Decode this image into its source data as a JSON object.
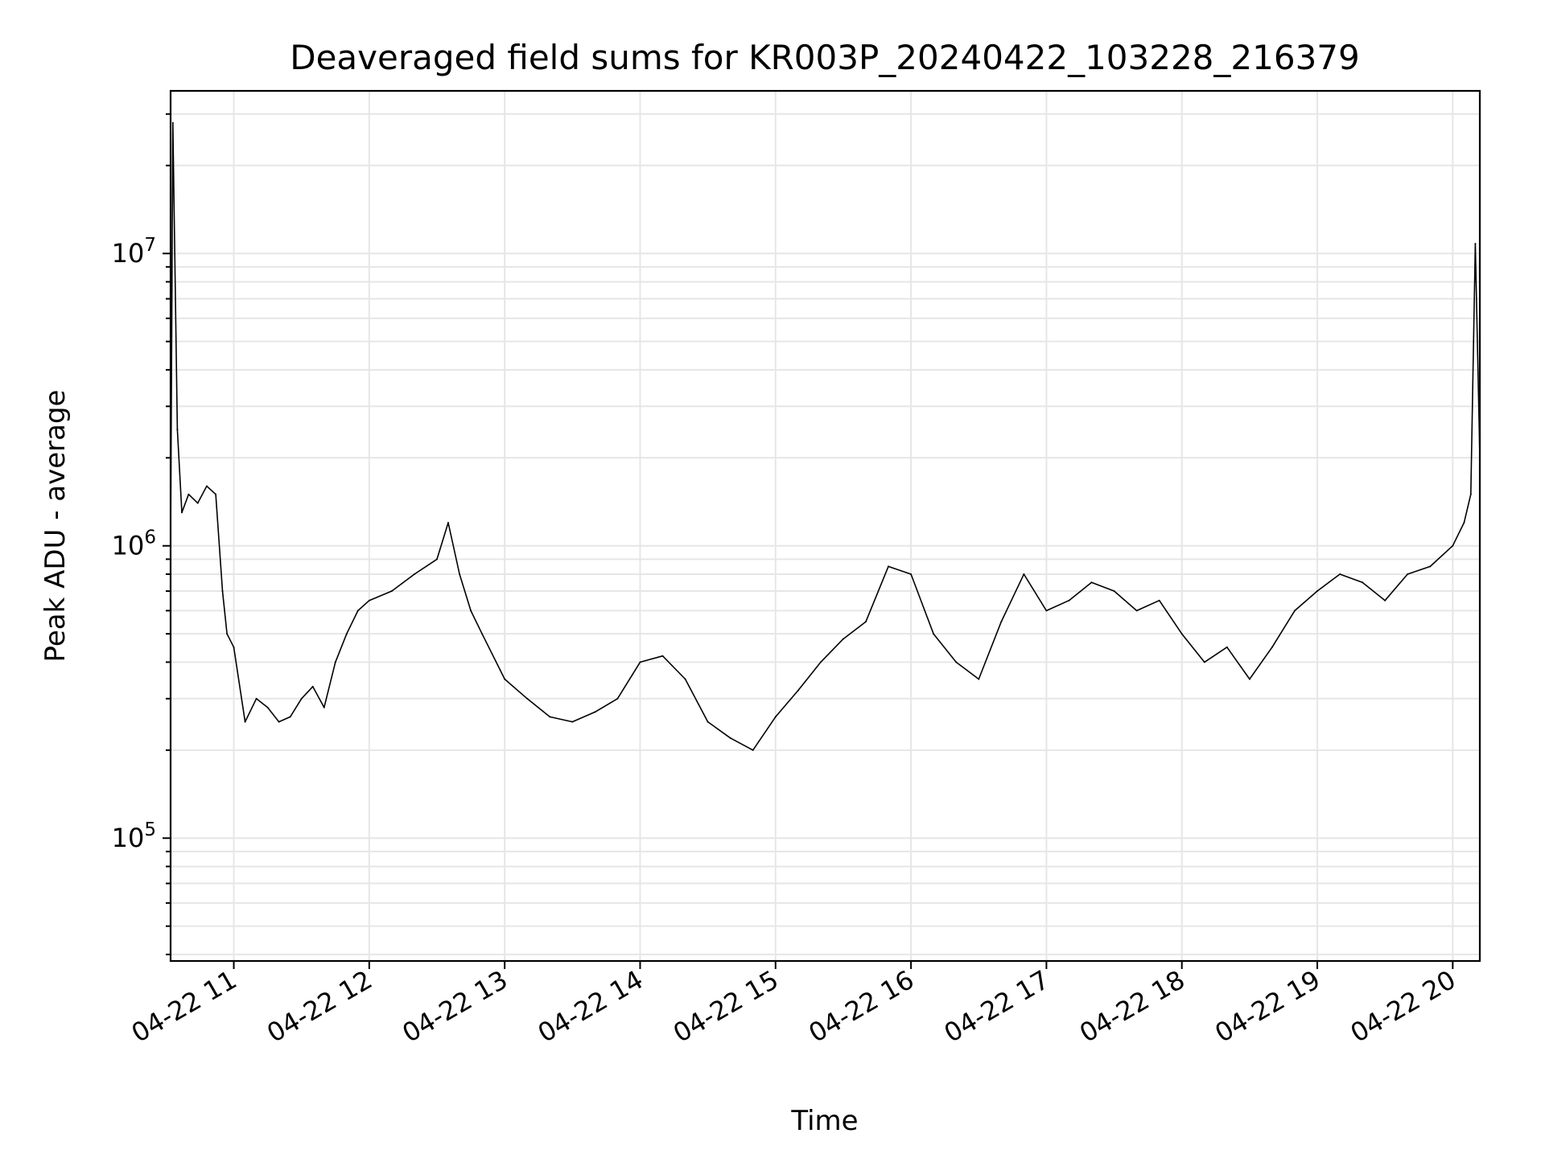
{
  "chart_data": {
    "type": "line",
    "title": "Deaveraged field sums for KR003P_20240422_103228_216379",
    "xlabel": "Time",
    "ylabel": "Peak ADU - average",
    "yscale": "log",
    "ylim": [
      38000,
      36000000
    ],
    "xlim": [
      "2024-04-22 10:32",
      "2024-04-22 20:12"
    ],
    "grid": true,
    "line_color": "#000000",
    "grid_color": "#e6e6e6",
    "x_ticks": [
      "04-22 11",
      "04-22 12",
      "04-22 13",
      "04-22 14",
      "04-22 15",
      "04-22 16",
      "04-22 17",
      "04-22 18",
      "04-22 19",
      "04-22 20"
    ],
    "y_ticks": [
      {
        "value": 100000,
        "base": "10",
        "exp": "5"
      },
      {
        "value": 1000000,
        "base": "10",
        "exp": "6"
      },
      {
        "value": 10000000,
        "base": "10",
        "exp": "7"
      }
    ],
    "series": [
      {
        "x": [
          "2024-04-22 10:32",
          "2024-04-22 10:33",
          "2024-04-22 10:35",
          "2024-04-22 10:37",
          "2024-04-22 10:40",
          "2024-04-22 10:44",
          "2024-04-22 10:48",
          "2024-04-22 10:52",
          "2024-04-22 10:55",
          "2024-04-22 10:57",
          "2024-04-22 11:00",
          "2024-04-22 11:05",
          "2024-04-22 11:10",
          "2024-04-22 11:15",
          "2024-04-22 11:20",
          "2024-04-22 11:25",
          "2024-04-22 11:30",
          "2024-04-22 11:35",
          "2024-04-22 11:40",
          "2024-04-22 11:45",
          "2024-04-22 11:50",
          "2024-04-22 11:55",
          "2024-04-22 12:00",
          "2024-04-22 12:10",
          "2024-04-22 12:20",
          "2024-04-22 12:30",
          "2024-04-22 12:35",
          "2024-04-22 12:40",
          "2024-04-22 12:45",
          "2024-04-22 12:50",
          "2024-04-22 13:00",
          "2024-04-22 13:10",
          "2024-04-22 13:20",
          "2024-04-22 13:30",
          "2024-04-22 13:40",
          "2024-04-22 13:50",
          "2024-04-22 14:00",
          "2024-04-22 14:10",
          "2024-04-22 14:20",
          "2024-04-22 14:30",
          "2024-04-22 14:40",
          "2024-04-22 14:50",
          "2024-04-22 15:00",
          "2024-04-22 15:10",
          "2024-04-22 15:20",
          "2024-04-22 15:30",
          "2024-04-22 15:40",
          "2024-04-22 15:50",
          "2024-04-22 16:00",
          "2024-04-22 16:10",
          "2024-04-22 16:20",
          "2024-04-22 16:30",
          "2024-04-22 16:40",
          "2024-04-22 16:50",
          "2024-04-22 17:00",
          "2024-04-22 17:10",
          "2024-04-22 17:20",
          "2024-04-22 17:30",
          "2024-04-22 17:40",
          "2024-04-22 17:50",
          "2024-04-22 18:00",
          "2024-04-22 18:10",
          "2024-04-22 18:20",
          "2024-04-22 18:30",
          "2024-04-22 18:40",
          "2024-04-22 18:50",
          "2024-04-22 19:00",
          "2024-04-22 19:10",
          "2024-04-22 19:20",
          "2024-04-22 19:30",
          "2024-04-22 19:40",
          "2024-04-22 19:50",
          "2024-04-22 20:00",
          "2024-04-22 20:05",
          "2024-04-22 20:08",
          "2024-04-22 20:10",
          "2024-04-22 20:12"
        ],
        "values": [
          1000000,
          28000000,
          2500000,
          1300000,
          1500000,
          1400000,
          1600000,
          1500000,
          700000,
          500000,
          450000,
          250000,
          300000,
          280000,
          250000,
          260000,
          300000,
          330000,
          280000,
          400000,
          500000,
          600000,
          650000,
          700000,
          800000,
          900000,
          1200000,
          800000,
          600000,
          500000,
          350000,
          300000,
          260000,
          250000,
          270000,
          300000,
          400000,
          420000,
          350000,
          250000,
          220000,
          200000,
          260000,
          320000,
          400000,
          480000,
          550000,
          850000,
          800000,
          500000,
          400000,
          350000,
          550000,
          800000,
          600000,
          650000,
          750000,
          700000,
          600000,
          650000,
          500000,
          400000,
          450000,
          350000,
          450000,
          600000,
          700000,
          800000,
          750000,
          650000,
          800000,
          850000,
          1000000,
          1200000,
          1500000,
          10800000,
          2000000
        ]
      }
    ]
  }
}
